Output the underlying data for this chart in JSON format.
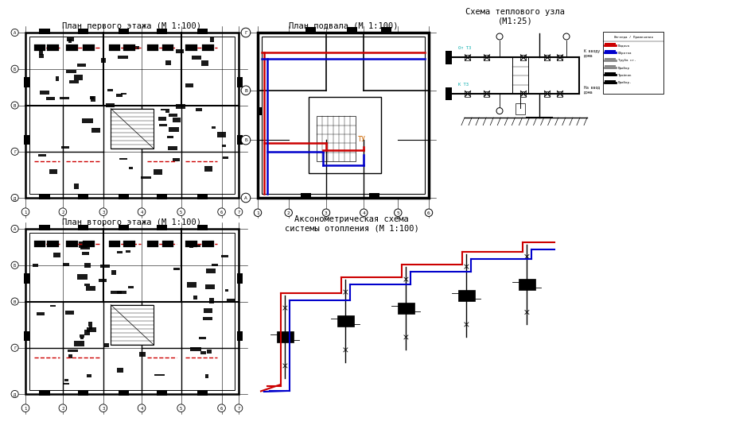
{
  "bg_color": "#ffffff",
  "title1": "План первого этажа (М 1:100)",
  "title2": "План подвала (М 1:100)",
  "title3": "Схема теплового узла\n(М1:25)",
  "title4": "План второго этажа (М 1:100)",
  "title5": "Аксонометрическая схема\nсистемы отопления (М 1:100)",
  "line_color": "#000000",
  "red_color": "#cc0000",
  "blue_color": "#0000cc",
  "font_size_title": 7.5,
  "fig_width": 9.2,
  "fig_height": 5.14
}
